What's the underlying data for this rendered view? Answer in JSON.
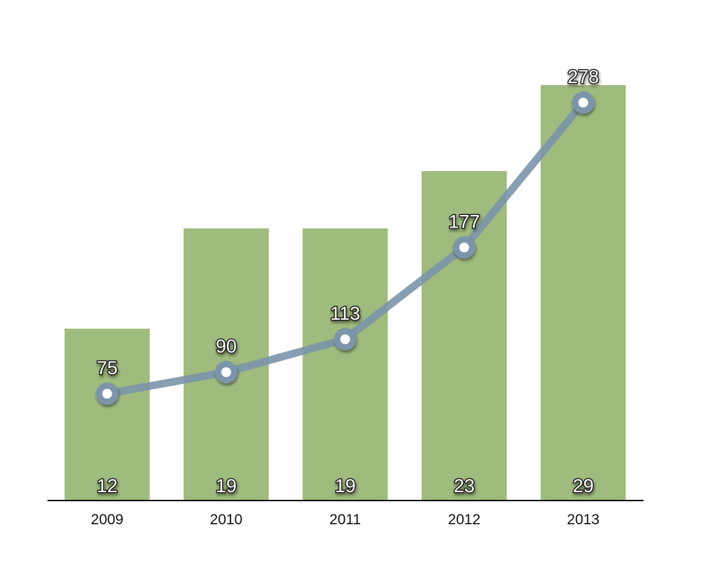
{
  "chart_data": {
    "type": "bar",
    "categories": [
      "2009",
      "2010",
      "2011",
      "2012",
      "2013"
    ],
    "series": [
      {
        "type": "bar",
        "values": [
          12,
          19,
          19,
          23,
          29
        ],
        "color": "#9fbb7d"
      },
      {
        "type": "line",
        "values": [
          75,
          90,
          113,
          177,
          278
        ],
        "color": "#7b95ab"
      }
    ],
    "bar_ylim": [
      0,
      36
    ],
    "line_ylim": [
      -79,
      311
    ],
    "grid": false,
    "legend": "none"
  }
}
